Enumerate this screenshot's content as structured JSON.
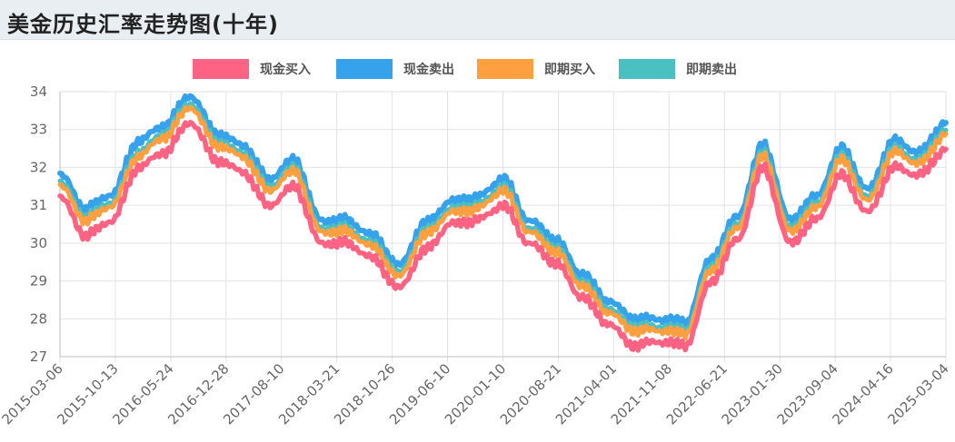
{
  "title": "美金历史汇率走势图(十年)",
  "colors": {
    "cash_buy": "#ff6384",
    "cash_sell": "#36a2eb",
    "spot_buy": "#ff9f40",
    "spot_sell": "#4bc0c0"
  },
  "legend": [
    {
      "label": "现金买入",
      "color": "#ff6384"
    },
    {
      "label": "现金卖出",
      "color": "#36a2eb"
    },
    {
      "label": "即期买入",
      "color": "#ff9f40"
    },
    {
      "label": "即期卖出",
      "color": "#4bc0c0"
    }
  ],
  "chart_data": {
    "type": "line",
    "title": "",
    "xlabel": "",
    "ylabel": "",
    "ylim": [
      27,
      34
    ],
    "y_ticks": [
      27,
      28,
      29,
      30,
      31,
      32,
      33,
      34
    ],
    "x_tick_labels": [
      "2015-03-06",
      "2015-10-13",
      "2016-05-24",
      "2016-12-28",
      "2017-08-10",
      "2018-03-21",
      "2018-10-26",
      "2019-06-10",
      "2020-01-10",
      "2020-08-21",
      "2021-04-01",
      "2021-11-08",
      "2022-06-21",
      "2023-01-30",
      "2023-09-04",
      "2024-04-16",
      "2025-03-04"
    ],
    "grid": true,
    "legend_position": "top-center",
    "series": [
      {
        "name": "现金买入",
        "values": [
          31.2,
          30.2,
          30.6,
          32.0,
          32.4,
          33.2,
          32.2,
          31.9,
          31.0,
          31.5,
          30.0,
          30.0,
          29.6,
          28.8,
          29.8,
          30.5,
          30.6,
          31.0,
          30.0,
          29.5,
          28.6,
          27.9,
          27.3,
          27.4,
          27.3,
          29.0,
          30.1,
          32.0,
          30.0,
          30.6,
          31.8,
          30.8,
          32.0,
          31.8,
          32.5
        ]
      },
      {
        "name": "现金卖出",
        "values": [
          31.8,
          30.9,
          31.3,
          32.7,
          33.1,
          33.9,
          32.9,
          32.6,
          31.7,
          32.2,
          30.6,
          30.6,
          30.2,
          29.4,
          30.5,
          31.1,
          31.2,
          31.7,
          30.6,
          30.1,
          29.2,
          28.5,
          28.0,
          28.0,
          27.9,
          29.6,
          30.7,
          32.6,
          30.6,
          31.2,
          32.5,
          31.4,
          32.7,
          32.4,
          33.2
        ]
      },
      {
        "name": "即期买入",
        "values": [
          31.5,
          30.6,
          31.0,
          32.3,
          32.8,
          33.6,
          32.6,
          32.3,
          31.4,
          31.9,
          30.3,
          30.3,
          29.9,
          29.1,
          30.2,
          30.8,
          30.9,
          31.4,
          30.3,
          29.8,
          28.9,
          28.2,
          27.7,
          27.7,
          27.6,
          29.3,
          30.4,
          32.3,
          30.3,
          30.9,
          32.2,
          31.1,
          32.4,
          32.1,
          32.9
        ]
      },
      {
        "name": "即期卖出",
        "values": [
          31.6,
          30.7,
          31.1,
          32.4,
          32.9,
          33.7,
          32.7,
          32.4,
          31.5,
          32.0,
          30.4,
          30.4,
          30.0,
          29.2,
          30.3,
          30.9,
          31.0,
          31.5,
          30.4,
          29.9,
          29.0,
          28.3,
          27.8,
          27.8,
          27.7,
          29.4,
          30.5,
          32.4,
          30.4,
          31.0,
          32.3,
          31.2,
          32.5,
          32.2,
          33.0
        ]
      }
    ]
  }
}
